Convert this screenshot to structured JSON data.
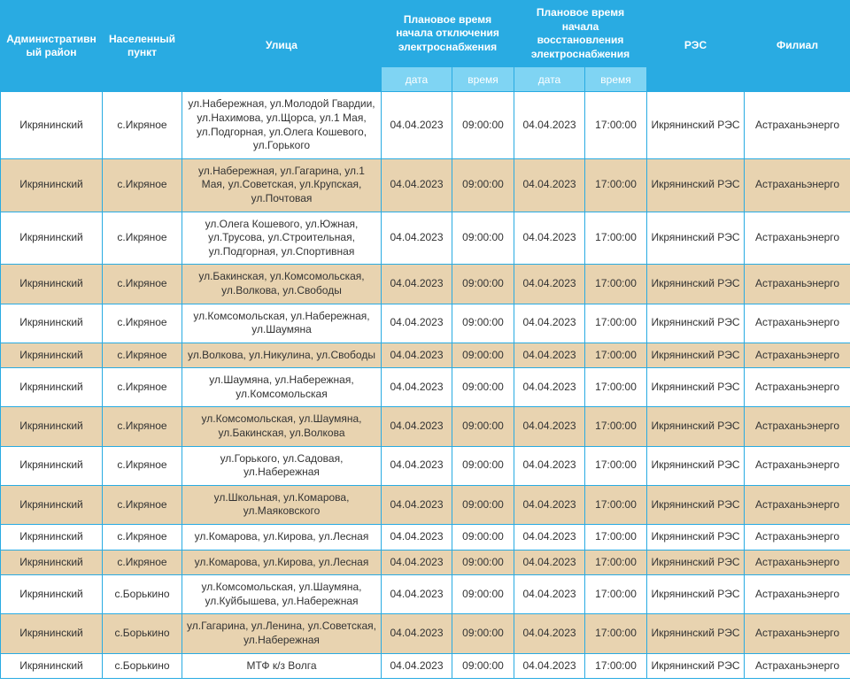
{
  "colors": {
    "header_main_bg": "#29abe2",
    "header_sub_bg": "#7fd4f3",
    "header_text": "#ffffff",
    "border": "#29abe2",
    "row_odd_bg": "#ffffff",
    "row_even_bg": "#e8d3b0",
    "cell_text": "#333333"
  },
  "columns": {
    "district": "Административный район",
    "locality": "Населенный пункт",
    "street": "Улица",
    "disconnect_group": "Плановое время начала отключения электроснабжения",
    "restore_group": "Плановое время начала восстановления электроснабжения",
    "res": "РЭС",
    "branch": "Филиал",
    "sub_date": "дата",
    "sub_time": "время"
  },
  "rows": [
    {
      "district": "Икрянинский",
      "locality": "с.Икряное",
      "street": "ул.Набережная, ул.Молодой Гвардии, ул.Нахимова, ул.Щорса, ул.1 Мая, ул.Подгорная, ул.Олега Кошевого, ул.Горького",
      "d_date": "04.04.2023",
      "d_time": "09:00:00",
      "r_date": "04.04.2023",
      "r_time": "17:00:00",
      "res": "Икрянинский РЭС",
      "branch": "Астраханьэнерго"
    },
    {
      "district": "Икрянинский",
      "locality": "с.Икряное",
      "street": "ул.Набережная, ул.Гагарина, ул.1 Мая, ул.Советская, ул.Крупская, ул.Почтовая",
      "d_date": "04.04.2023",
      "d_time": "09:00:00",
      "r_date": "04.04.2023",
      "r_time": "17:00:00",
      "res": "Икрянинский РЭС",
      "branch": "Астраханьэнерго"
    },
    {
      "district": "Икрянинский",
      "locality": "с.Икряное",
      "street": "ул.Олега Кошевого, ул.Южная, ул.Трусова, ул.Строительная, ул.Подгорная, ул.Спортивная",
      "d_date": "04.04.2023",
      "d_time": "09:00:00",
      "r_date": "04.04.2023",
      "r_time": "17:00:00",
      "res": "Икрянинский РЭС",
      "branch": "Астраханьэнерго"
    },
    {
      "district": "Икрянинский",
      "locality": "с.Икряное",
      "street": "ул.Бакинская, ул.Комсомольская, ул.Волкова, ул.Свободы",
      "d_date": "04.04.2023",
      "d_time": "09:00:00",
      "r_date": "04.04.2023",
      "r_time": "17:00:00",
      "res": "Икрянинский РЭС",
      "branch": "Астраханьэнерго"
    },
    {
      "district": "Икрянинский",
      "locality": "с.Икряное",
      "street": "ул.Комсомольская, ул.Набережная, ул.Шаумяна",
      "d_date": "04.04.2023",
      "d_time": "09:00:00",
      "r_date": "04.04.2023",
      "r_time": "17:00:00",
      "res": "Икрянинский РЭС",
      "branch": "Астраханьэнерго"
    },
    {
      "district": "Икрянинский",
      "locality": "с.Икряное",
      "street": "ул.Волкова, ул.Никулина, ул.Свободы",
      "d_date": "04.04.2023",
      "d_time": "09:00:00",
      "r_date": "04.04.2023",
      "r_time": "17:00:00",
      "res": "Икрянинский РЭС",
      "branch": "Астраханьэнерго"
    },
    {
      "district": "Икрянинский",
      "locality": "с.Икряное",
      "street": "ул.Шаумяна, ул.Набережная, ул.Комсомольская",
      "d_date": "04.04.2023",
      "d_time": "09:00:00",
      "r_date": "04.04.2023",
      "r_time": "17:00:00",
      "res": "Икрянинский РЭС",
      "branch": "Астраханьэнерго"
    },
    {
      "district": "Икрянинский",
      "locality": "с.Икряное",
      "street": "ул.Комсомольская, ул.Шаумяна, ул.Бакинская, ул.Волкова",
      "d_date": "04.04.2023",
      "d_time": "09:00:00",
      "r_date": "04.04.2023",
      "r_time": "17:00:00",
      "res": "Икрянинский РЭС",
      "branch": "Астраханьэнерго"
    },
    {
      "district": "Икрянинский",
      "locality": "с.Икряное",
      "street": "ул.Горького, ул.Садовая, ул.Набережная",
      "d_date": "04.04.2023",
      "d_time": "09:00:00",
      "r_date": "04.04.2023",
      "r_time": "17:00:00",
      "res": "Икрянинский РЭС",
      "branch": "Астраханьэнерго"
    },
    {
      "district": "Икрянинский",
      "locality": "с.Икряное",
      "street": "ул.Школьная, ул.Комарова, ул.Маяковского",
      "d_date": "04.04.2023",
      "d_time": "09:00:00",
      "r_date": "04.04.2023",
      "r_time": "17:00:00",
      "res": "Икрянинский РЭС",
      "branch": "Астраханьэнерго"
    },
    {
      "district": "Икрянинский",
      "locality": "с.Икряное",
      "street": "ул.Комарова, ул.Кирова, ул.Лесная",
      "d_date": "04.04.2023",
      "d_time": "09:00:00",
      "r_date": "04.04.2023",
      "r_time": "17:00:00",
      "res": "Икрянинский РЭС",
      "branch": "Астраханьэнерго"
    },
    {
      "district": "Икрянинский",
      "locality": "с.Икряное",
      "street": "ул.Комарова, ул.Кирова, ул.Лесная",
      "d_date": "04.04.2023",
      "d_time": "09:00:00",
      "r_date": "04.04.2023",
      "r_time": "17:00:00",
      "res": "Икрянинский РЭС",
      "branch": "Астраханьэнерго"
    },
    {
      "district": "Икрянинский",
      "locality": "с.Борькино",
      "street": "ул.Комсомольская, ул.Шаумяна, ул.Куйбышева, ул.Набережная",
      "d_date": "04.04.2023",
      "d_time": "09:00:00",
      "r_date": "04.04.2023",
      "r_time": "17:00:00",
      "res": "Икрянинский РЭС",
      "branch": "Астраханьэнерго"
    },
    {
      "district": "Икрянинский",
      "locality": "с.Борькино",
      "street": "ул.Гагарина, ул.Ленина, ул.Советская, ул.Набережная",
      "d_date": "04.04.2023",
      "d_time": "09:00:00",
      "r_date": "04.04.2023",
      "r_time": "17:00:00",
      "res": "Икрянинский РЭС",
      "branch": "Астраханьэнерго"
    },
    {
      "district": "Икрянинский",
      "locality": "с.Борькино",
      "street": "МТФ к/з Волга",
      "d_date": "04.04.2023",
      "d_time": "09:00:00",
      "r_date": "04.04.2023",
      "r_time": "17:00:00",
      "res": "Икрянинский РЭС",
      "branch": "Астраханьэнерго"
    }
  ]
}
